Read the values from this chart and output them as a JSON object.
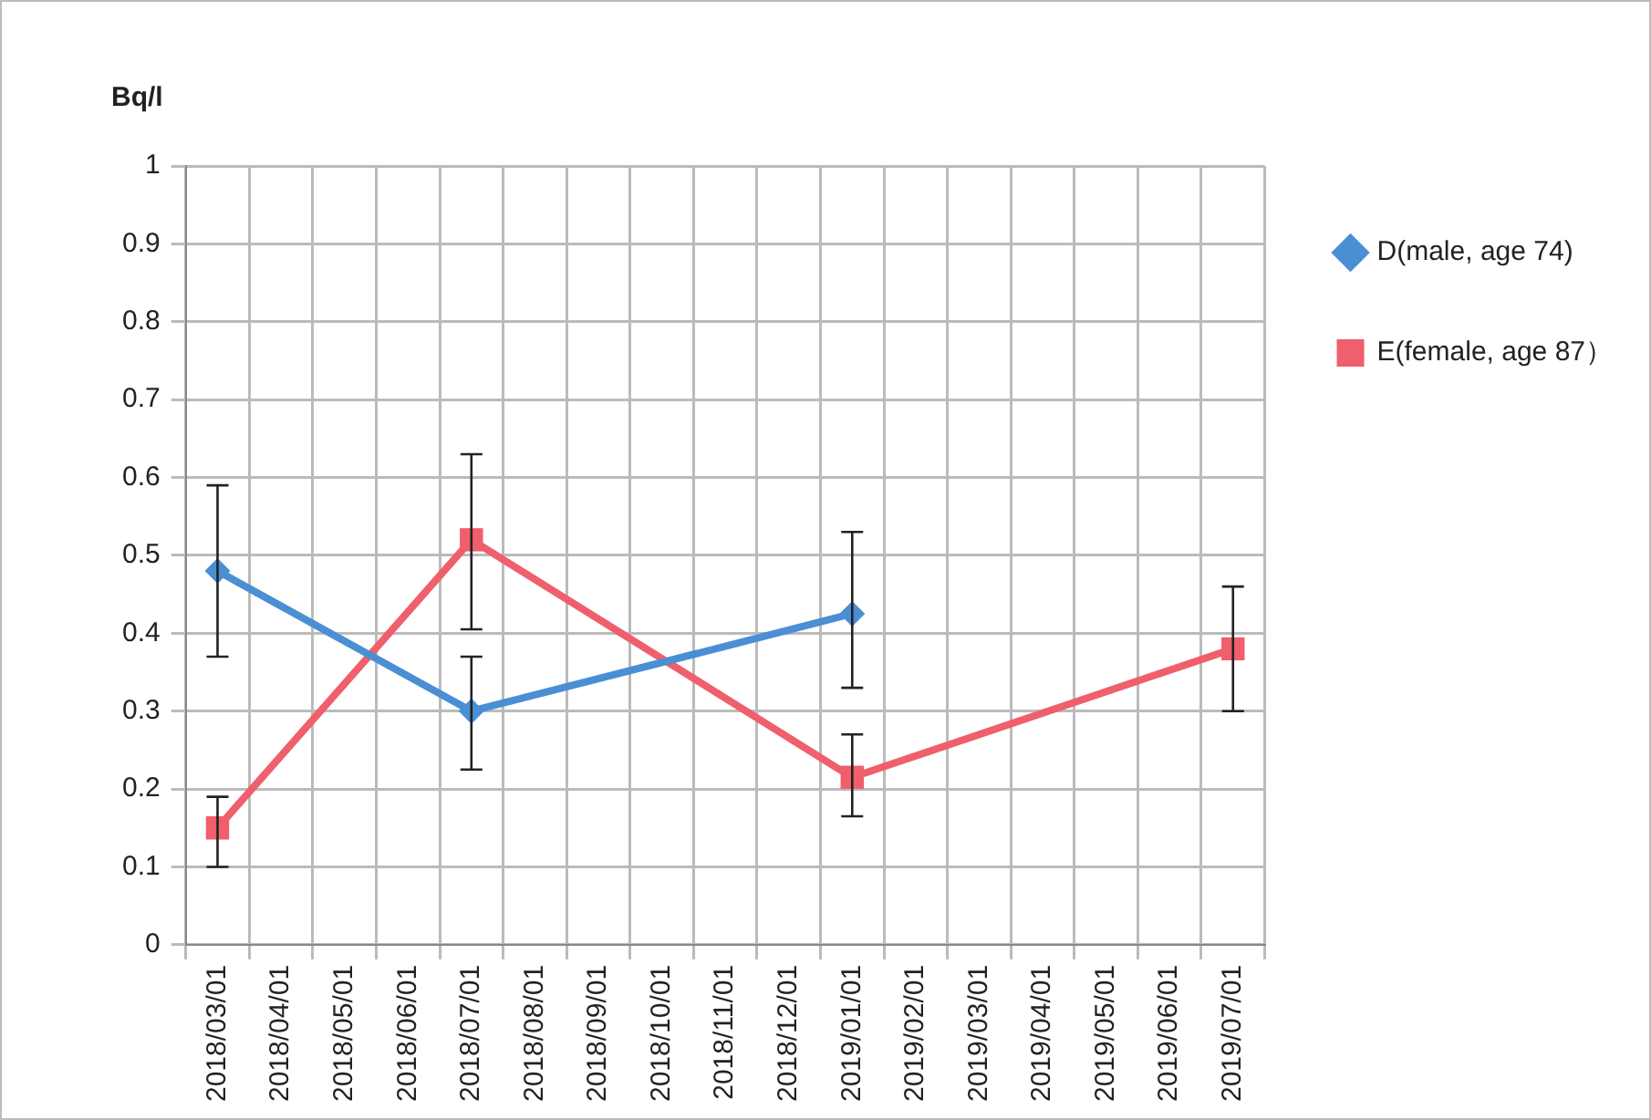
{
  "chart_data": {
    "type": "line",
    "ylabel": "Bq/l",
    "categories": [
      "2018/03/01",
      "2018/04/01",
      "2018/05/01",
      "2018/06/01",
      "2018/07/01",
      "2018/08/01",
      "2018/09/01",
      "2018/10/01",
      "2018/11/01",
      "2018/12/01",
      "2019/01/01",
      "2019/02/01",
      "2019/03/01",
      "2019/04/01",
      "2019/05/01",
      "2019/06/01",
      "2019/07/01"
    ],
    "series": [
      {
        "name": "D(male, age 74)",
        "color": "#4a8fd3",
        "marker": "diamond",
        "values": [
          0.48,
          null,
          null,
          null,
          0.3,
          null,
          null,
          null,
          null,
          null,
          0.425,
          null,
          null,
          null,
          null,
          null,
          null
        ],
        "errors": [
          [
            0.37,
            0.59
          ],
          null,
          null,
          null,
          [
            0.225,
            0.37
          ],
          null,
          null,
          null,
          null,
          null,
          [
            0.33,
            0.53
          ],
          null,
          null,
          null,
          null,
          null,
          null
        ]
      },
      {
        "name": "E(female, age 87）",
        "color": "#ef5f6c",
        "marker": "square",
        "values": [
          0.15,
          null,
          null,
          null,
          0.52,
          null,
          null,
          null,
          null,
          null,
          0.215,
          null,
          null,
          null,
          null,
          null,
          0.38
        ],
        "errors": [
          [
            0.1,
            0.19
          ],
          null,
          null,
          null,
          [
            0.405,
            0.63
          ],
          null,
          null,
          null,
          null,
          null,
          [
            0.165,
            0.27
          ],
          null,
          null,
          null,
          null,
          null,
          [
            0.3,
            0.46
          ]
        ]
      }
    ],
    "ylim": [
      0,
      1
    ],
    "yticks": [
      0,
      0.1,
      0.2,
      0.3,
      0.4,
      0.5,
      0.6,
      0.7,
      0.8,
      0.9,
      1
    ],
    "grid": true,
    "legend": "right"
  }
}
